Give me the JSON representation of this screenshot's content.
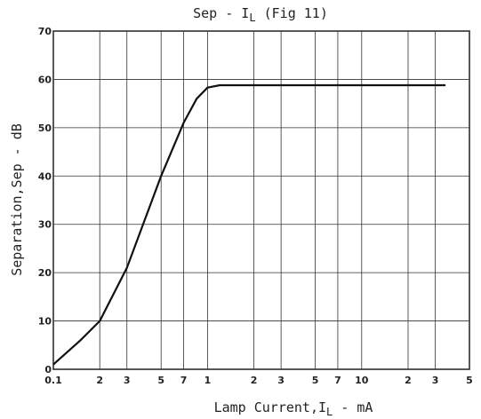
{
  "chart_data": {
    "type": "line",
    "title": [
      "Sep - I",
      "L",
      " (Fig 11)"
    ],
    "xlabel": [
      "Lamp Current,I",
      "L",
      " - mA"
    ],
    "ylabel": "Separation,Sep - dB",
    "x": [
      0.1,
      0.15,
      0.2,
      0.3,
      0.5,
      0.7,
      0.85,
      1,
      1.2,
      1.5,
      2,
      5,
      10,
      35
    ],
    "values": [
      1,
      6,
      10,
      21,
      40,
      51,
      56,
      58.3,
      58.8,
      58.8,
      58.8,
      58.8,
      58.8,
      58.8
    ],
    "color": "#111111",
    "xscale": "log",
    "xlim": [
      0.1,
      50
    ],
    "ylim": [
      0,
      70
    ],
    "xticks": [
      0.1,
      {
        "value": 0.2,
        "label": "2"
      },
      {
        "value": 0.3,
        "label": "3"
      },
      {
        "value": 0.5,
        "label": "5"
      },
      {
        "value": 0.7,
        "label": "7"
      },
      1,
      {
        "value": 2,
        "label": "2"
      },
      {
        "value": 3,
        "label": "3"
      },
      {
        "value": 5,
        "label": "5"
      },
      {
        "value": 7,
        "label": "7"
      },
      10,
      {
        "value": 20,
        "label": "2"
      },
      {
        "value": 30,
        "label": "3"
      },
      {
        "value": 50,
        "label": "5"
      }
    ],
    "yticks": [
      0,
      10,
      20,
      30,
      40,
      50,
      60,
      70
    ],
    "grid": true
  }
}
